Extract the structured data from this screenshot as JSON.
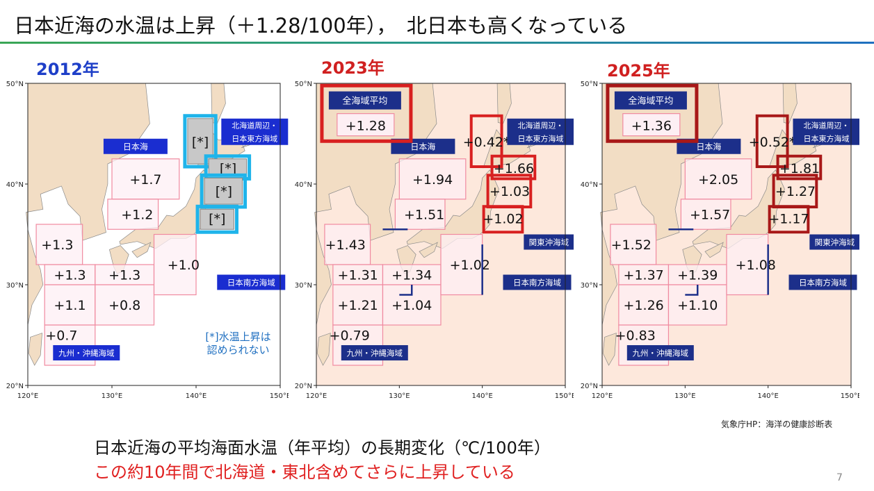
{
  "slide": {
    "title": "日本近海の水温は上昇（＋1.28/100年），　北日本も高くなっている",
    "source": "気象庁HP：海洋の健康診断表",
    "caption_line1": "日本近海の平均海面水温（年平均）の長期変化（℃/100年）",
    "caption_line2": "この約10年間で北海道・東北含めてさらに上昇している",
    "page_number": "7"
  },
  "colors": {
    "land": "#f2ddc4",
    "sea_2012": "#ffffff",
    "sea_new": "#fde8dc",
    "area_fill": "#fdeff4",
    "area_border": "#f08aa0",
    "label_bg": "#1c2f8a",
    "label_bg_2012": "#1a2dd0",
    "highlight_blue": "#1fb4ea",
    "highlight_red": "#d82020",
    "highlight_darkred": "#a81818",
    "year_2012": "#1e3fc8",
    "year_new": "#d02020",
    "gray_area": "#c8c8c8"
  },
  "axes": {
    "lat_ticks": [
      "50°N",
      "40°N",
      "30°N",
      "20°N"
    ],
    "lon_ticks": [
      "120°E",
      "130°E",
      "140°E",
      "150°E"
    ]
  },
  "maps": [
    {
      "year": "2012年",
      "year_color": "#1e3fc8",
      "values": {
        "sea_japan_n": "+1.7",
        "sea_japan_s": "+1.2",
        "yellow_sea": "+1.3",
        "east_china_n": "+1.3",
        "east_china_c": "+1.3",
        "east_china_s": "+1.1",
        "south_japan_w": "+0.8",
        "kanto": "+1.0",
        "okinawa": "+0.7",
        "hokkaido_w": "[*]",
        "hokkaido_e": "[*]",
        "sanriku": "[*]",
        "kanto_n": "[*]"
      },
      "labels": {
        "sea_japan": "日本海",
        "north": "北海道周辺・\n日本東方海域",
        "south": "日本南方海域",
        "kyushu": "九州・沖縄海域"
      },
      "note": "[*]水温上昇は\n認められない"
    },
    {
      "year": "2023年",
      "year_color": "#d02020",
      "values": {
        "average": "+1.28",
        "hokkaido_w": "+0.42*",
        "hokkaido_e": "+1.66",
        "sanriku": "+1.03",
        "kanto_n": "+1.02",
        "sea_japan_n": "+1.94",
        "sea_japan_s": "+1.51",
        "yellow_sea": "+1.43",
        "east_china_n": "+1.31",
        "east_china_c": "+1.34",
        "east_china_s": "+1.21",
        "south_japan_w": "+1.04",
        "kanto": "+1.02",
        "okinawa": "+0.79"
      },
      "labels": {
        "average": "全海域平均",
        "sea_japan": "日本海",
        "north": "北海道周辺・\n日本東方海域",
        "kanto": "関東沖海域",
        "south": "日本南方海域",
        "kyushu": "九州・沖縄海域"
      }
    },
    {
      "year": "2025年",
      "year_color": "#d02020",
      "values": {
        "average": "+1.36",
        "hokkaido_w": "+0.52*",
        "hokkaido_e": "+1.81",
        "sanriku": "+1.27",
        "kanto_n": "+1.17",
        "sea_japan_n": "+2.05",
        "sea_japan_s": "+1.57",
        "yellow_sea": "+1.52",
        "east_china_n": "+1.37",
        "east_china_c": "+1.39",
        "east_china_s": "+1.26",
        "south_japan_w": "+1.10",
        "kanto": "+1.08",
        "okinawa": "+0.83"
      },
      "labels": {
        "average": "全海域平均",
        "sea_japan": "日本海",
        "north": "北海道周辺・\n日本東方海域",
        "kanto": "関東沖海域",
        "south": "日本南方海域",
        "kyushu": "九州・沖縄海域"
      }
    }
  ]
}
